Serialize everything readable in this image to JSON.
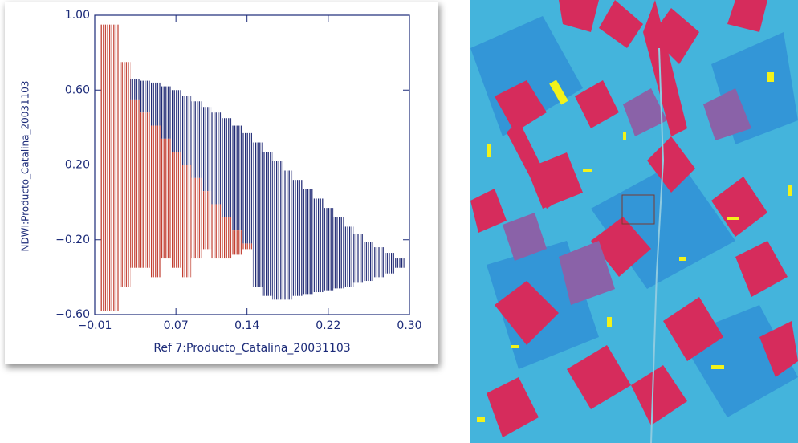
{
  "chart_data": {
    "type": "scatter",
    "x_label": "Ref 7:Producto_Catalina_20031103",
    "y_label": "NDWI:Producto_Catalina_20031103",
    "xlim": [
      -0.01,
      0.3
    ],
    "ylim": [
      -0.6,
      1.0
    ],
    "xticks": [
      {
        "value": -0.01,
        "label": "−0.01"
      },
      0.07,
      0.14,
      0.22,
      {
        "value": 0.3,
        "label": "0.30"
      }
    ],
    "yticks": [
      {
        "value": -0.6,
        "label": "−0.60"
      },
      {
        "value": -0.2,
        "label": "−0.20"
      },
      {
        "value": 0.2,
        "label": "0.20"
      },
      {
        "value": 0.6,
        "label": "0.60"
      },
      {
        "value": 1.0,
        "label": "1.00"
      }
    ],
    "series": [
      {
        "color": "#1a2470",
        "x": [
          0.03,
          0.04,
          0.05,
          0.06,
          0.07,
          0.08,
          0.09,
          0.1,
          0.11,
          0.12,
          0.13,
          0.14,
          0.15,
          0.16,
          0.17,
          0.18,
          0.19,
          0.2,
          0.21,
          0.22,
          0.23,
          0.24,
          0.25,
          0.26,
          0.27,
          0.28,
          0.29
        ],
        "ymin": [
          0.55,
          0.48,
          0.41,
          0.34,
          0.27,
          0.2,
          0.13,
          0.06,
          -0.01,
          -0.08,
          -0.15,
          -0.22,
          -0.45,
          -0.5,
          -0.52,
          -0.52,
          -0.5,
          -0.49,
          -0.48,
          -0.47,
          -0.46,
          -0.45,
          -0.43,
          -0.42,
          -0.4,
          -0.38,
          -0.35
        ],
        "ymax": [
          0.66,
          0.65,
          0.64,
          0.62,
          0.6,
          0.57,
          0.54,
          0.51,
          0.48,
          0.45,
          0.41,
          0.37,
          0.32,
          0.27,
          0.22,
          0.17,
          0.12,
          0.07,
          0.02,
          -0.03,
          -0.08,
          -0.13,
          -0.17,
          -0.21,
          -0.24,
          -0.27,
          -0.3
        ]
      },
      {
        "color": "#c0392b",
        "x": [
          0.0,
          0.01,
          0.02,
          0.03,
          0.04,
          0.05,
          0.06,
          0.07,
          0.08,
          0.09,
          0.1,
          0.11,
          0.12,
          0.13,
          0.14
        ],
        "ymin": [
          -0.58,
          -0.58,
          -0.45,
          -0.35,
          -0.35,
          -0.4,
          -0.3,
          -0.35,
          -0.4,
          -0.3,
          -0.25,
          -0.3,
          -0.3,
          -0.28,
          -0.25
        ],
        "ymax": [
          0.95,
          0.95,
          0.75,
          0.55,
          0.48,
          0.41,
          0.34,
          0.27,
          0.2,
          0.13,
          0.06,
          -0.01,
          -0.08,
          -0.15,
          -0.22
        ]
      }
    ]
  }
}
